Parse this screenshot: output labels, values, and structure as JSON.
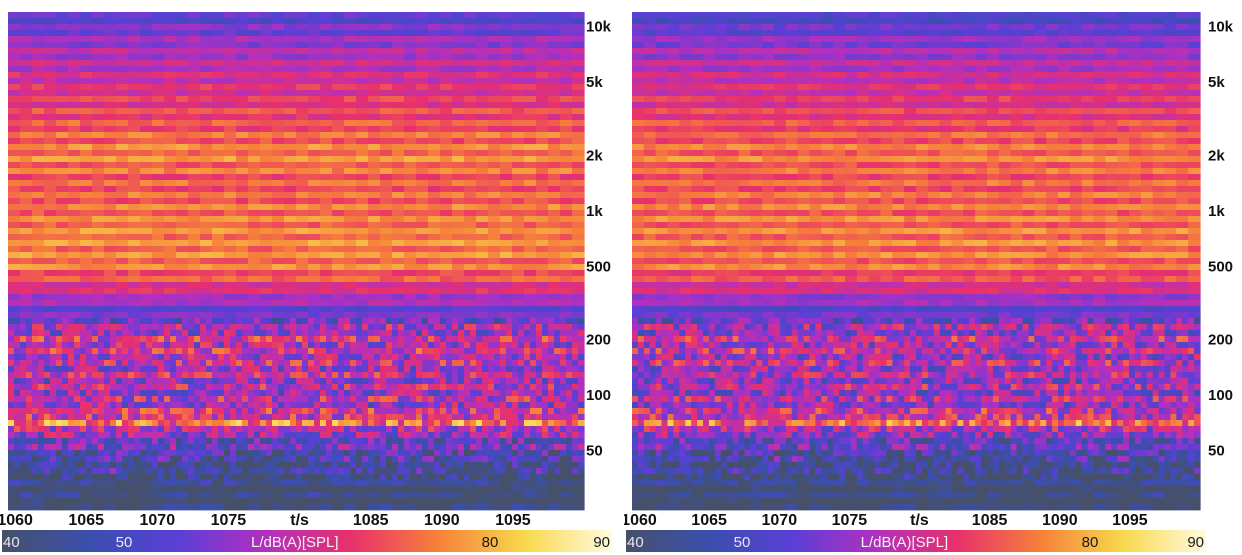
{
  "chart_data": [
    {
      "type": "heatmap",
      "x_ticks": [
        1060,
        1065,
        1070,
        1075,
        1085,
        1090,
        1095
      ],
      "x_axis_label": "t/s",
      "xlim": [
        1059.5,
        1100
      ],
      "y_ticks": [
        "50",
        "100",
        "200",
        "500",
        "1k",
        "2k",
        "5k",
        "10k"
      ],
      "y_tick_values": [
        50,
        100,
        200,
        500,
        1000,
        2000,
        5000,
        10000
      ],
      "y_scale": "log",
      "ylim": [
        25,
        12000
      ],
      "colorbar": {
        "label": "L/dB(A)[SPL]",
        "ticks": [
          "40",
          "50",
          "80",
          "90"
        ],
        "tick_values": [
          40,
          50,
          80,
          90
        ],
        "range": [
          40,
          90
        ],
        "colors": [
          "#46506a",
          "#3a4fae",
          "#5a3fd6",
          "#b030c0",
          "#e8306c",
          "#f6803a",
          "#f8d84c",
          "#fffbe0"
        ]
      },
      "level_profile_db": [
        {
          "f": 25,
          "level": 44
        },
        {
          "f": 35,
          "level": 47
        },
        {
          "f": 50,
          "level": 52
        },
        {
          "f": 60,
          "level": 56
        },
        {
          "f": 70,
          "level": 72
        },
        {
          "f": 85,
          "level": 62
        },
        {
          "f": 120,
          "level": 61
        },
        {
          "f": 200,
          "level": 64
        },
        {
          "f": 280,
          "level": 54
        },
        {
          "f": 400,
          "level": 69
        },
        {
          "f": 500,
          "level": 75
        },
        {
          "f": 700,
          "level": 76
        },
        {
          "f": 1000,
          "level": 74
        },
        {
          "f": 1500,
          "level": 72
        },
        {
          "f": 2000,
          "level": 76
        },
        {
          "f": 3000,
          "level": 71
        },
        {
          "f": 5000,
          "level": 66
        },
        {
          "f": 8000,
          "level": 60
        },
        {
          "f": 12000,
          "level": 52
        }
      ]
    },
    {
      "type": "heatmap",
      "x_ticks": [
        1060,
        1065,
        1070,
        1075,
        1085,
        1090,
        1095
      ],
      "x_axis_label": "t/s",
      "xlim": [
        1059.5,
        1100
      ],
      "y_ticks": [
        "50",
        "100",
        "200",
        "500",
        "1k",
        "2k",
        "5k",
        "10k"
      ],
      "y_tick_values": [
        50,
        100,
        200,
        500,
        1000,
        2000,
        5000,
        10000
      ],
      "y_scale": "log",
      "ylim": [
        25,
        12000
      ],
      "colorbar": {
        "label": "L/dB(A)[SPL]",
        "ticks": [
          "40",
          "50",
          "80",
          "90"
        ],
        "tick_values": [
          40,
          50,
          80,
          90
        ],
        "range": [
          40,
          90
        ],
        "colors": [
          "#46506a",
          "#3a4fae",
          "#5a3fd6",
          "#b030c0",
          "#e8306c",
          "#f6803a",
          "#f8d84c",
          "#fffbe0"
        ]
      },
      "level_profile_db": [
        {
          "f": 25,
          "level": 43
        },
        {
          "f": 35,
          "level": 46
        },
        {
          "f": 50,
          "level": 51
        },
        {
          "f": 60,
          "level": 55
        },
        {
          "f": 70,
          "level": 71
        },
        {
          "f": 85,
          "level": 61
        },
        {
          "f": 120,
          "level": 60
        },
        {
          "f": 200,
          "level": 63
        },
        {
          "f": 280,
          "level": 53
        },
        {
          "f": 400,
          "level": 68
        },
        {
          "f": 500,
          "level": 74
        },
        {
          "f": 700,
          "level": 75
        },
        {
          "f": 1000,
          "level": 74
        },
        {
          "f": 1500,
          "level": 72
        },
        {
          "f": 2000,
          "level": 75
        },
        {
          "f": 3000,
          "level": 70
        },
        {
          "f": 5000,
          "level": 65
        },
        {
          "f": 8000,
          "level": 59
        },
        {
          "f": 12000,
          "level": 50
        }
      ]
    }
  ]
}
